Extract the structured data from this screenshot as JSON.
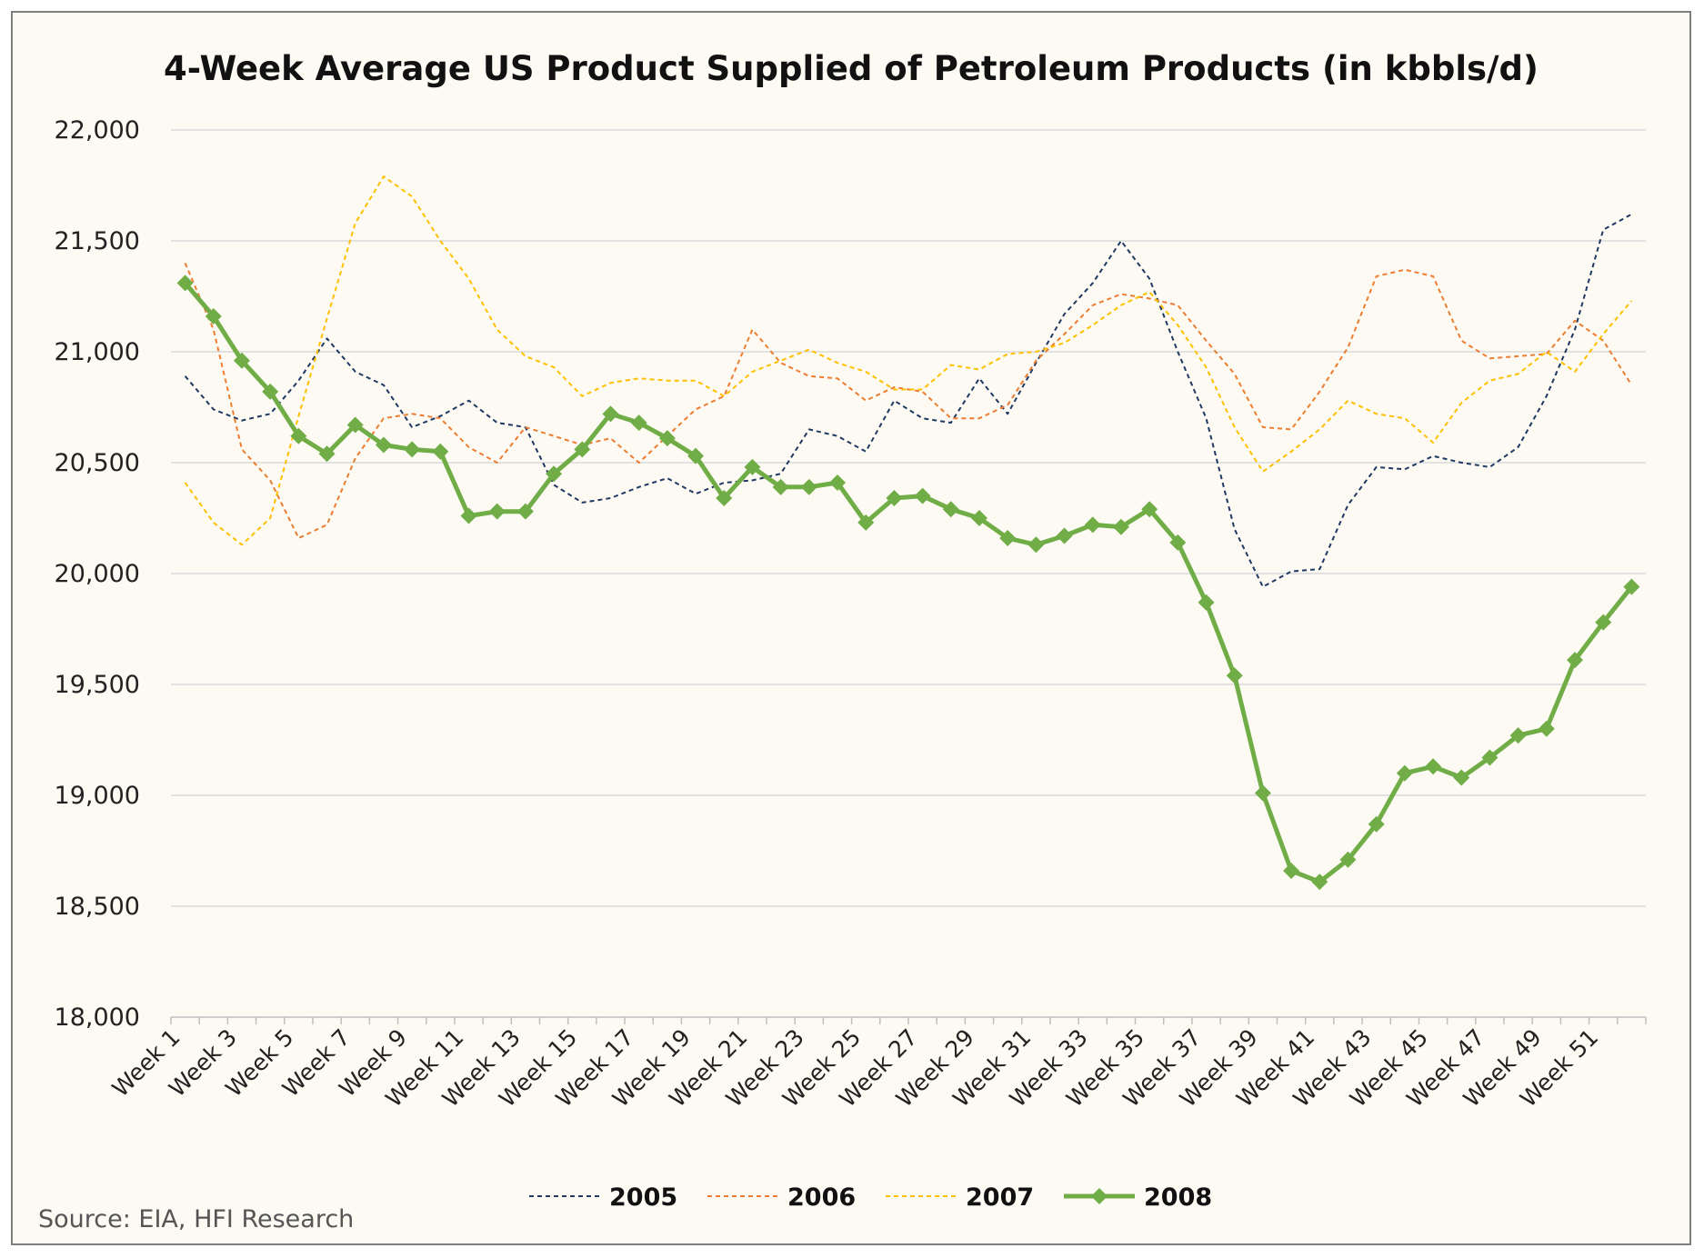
{
  "chart_data": {
    "type": "line",
    "title": "4-Week Average US Product Supplied of Petroleum Products (in kbbls/d)",
    "source": "Source: EIA, HFI Research",
    "xlabel": "",
    "ylabel": "",
    "ylim": [
      18000,
      22000
    ],
    "yticks": [
      "18,000",
      "18,500",
      "19,000",
      "19,500",
      "20,000",
      "20,500",
      "21,000",
      "21,500",
      "22,000"
    ],
    "grid": true,
    "legend_position": "bottom",
    "x": [
      "Week 1",
      "Week 2",
      "Week 3",
      "Week 4",
      "Week 5",
      "Week 6",
      "Week 7",
      "Week 8",
      "Week 9",
      "Week 10",
      "Week 11",
      "Week 12",
      "Week 13",
      "Week 14",
      "Week 15",
      "Week 16",
      "Week 17",
      "Week 18",
      "Week 19",
      "Week 20",
      "Week 21",
      "Week 22",
      "Week 23",
      "Week 24",
      "Week 25",
      "Week 26",
      "Week 27",
      "Week 28",
      "Week 29",
      "Week 30",
      "Week 31",
      "Week 32",
      "Week 33",
      "Week 34",
      "Week 35",
      "Week 36",
      "Week 37",
      "Week 38",
      "Week 39",
      "Week 40",
      "Week 41",
      "Week 42",
      "Week 43",
      "Week 44",
      "Week 45",
      "Week 46",
      "Week 47",
      "Week 48",
      "Week 49",
      "Week 50",
      "Week 51",
      "Week 52"
    ],
    "series": [
      {
        "name": "2005",
        "color": "#1f3864",
        "style": "dashed",
        "values": [
          20890,
          20740,
          20690,
          20720,
          20870,
          21060,
          20910,
          20850,
          20660,
          20710,
          20780,
          20680,
          20660,
          20400,
          20320,
          20340,
          20390,
          20430,
          20360,
          20410,
          20420,
          20450,
          20650,
          20620,
          20550,
          20780,
          20700,
          20680,
          20880,
          20720,
          20950,
          21170,
          21310,
          21500,
          21330,
          21000,
          20700,
          20200,
          19940,
          20010,
          20020,
          20310,
          20480,
          20470,
          20530,
          20500,
          20480,
          20570,
          20800,
          21100,
          21550,
          21620
        ]
      },
      {
        "name": "2006",
        "color": "#ed7d31",
        "style": "dashed",
        "values": [
          21400,
          21100,
          20560,
          20420,
          20160,
          20220,
          20520,
          20700,
          20720,
          20700,
          20570,
          20500,
          20660,
          20620,
          20580,
          20610,
          20500,
          20620,
          20740,
          20800,
          21100,
          20950,
          20890,
          20880,
          20780,
          20840,
          20820,
          20700,
          20700,
          20760,
          20960,
          21080,
          21210,
          21260,
          21240,
          21210,
          21050,
          20900,
          20660,
          20650,
          20820,
          21020,
          21340,
          21370,
          21340,
          21050,
          20970,
          20980,
          20990,
          21140,
          21050,
          20850
        ]
      },
      {
        "name": "2007",
        "color": "#ffc000",
        "style": "dashed",
        "values": [
          20410,
          20230,
          20130,
          20250,
          20710,
          21150,
          21580,
          21790,
          21700,
          21500,
          21330,
          21100,
          20980,
          20930,
          20800,
          20860,
          20880,
          20870,
          20870,
          20800,
          20910,
          20960,
          21010,
          20950,
          20910,
          20830,
          20830,
          20940,
          20920,
          20990,
          21000,
          21040,
          21120,
          21210,
          21270,
          21120,
          20930,
          20660,
          20460,
          20550,
          20650,
          20780,
          20720,
          20700,
          20590,
          20770,
          20870,
          20900,
          21000,
          20910,
          21080,
          21230
        ]
      },
      {
        "name": "2008",
        "color": "#70ad47",
        "style": "solid",
        "values": [
          21310,
          21160,
          20960,
          20820,
          20620,
          20540,
          20670,
          20580,
          20560,
          20550,
          20260,
          20280,
          20280,
          20450,
          20560,
          20720,
          20680,
          20610,
          20530,
          20340,
          20480,
          20390,
          20390,
          20410,
          20230,
          20340,
          20350,
          20290,
          20250,
          20160,
          20130,
          20170,
          20220,
          20210,
          20290,
          20140,
          19870,
          19540,
          19010,
          18660,
          18610,
          18710,
          18870,
          19100,
          19130,
          19080,
          19170,
          19270,
          19300,
          19610,
          19780,
          19940
        ]
      }
    ]
  }
}
